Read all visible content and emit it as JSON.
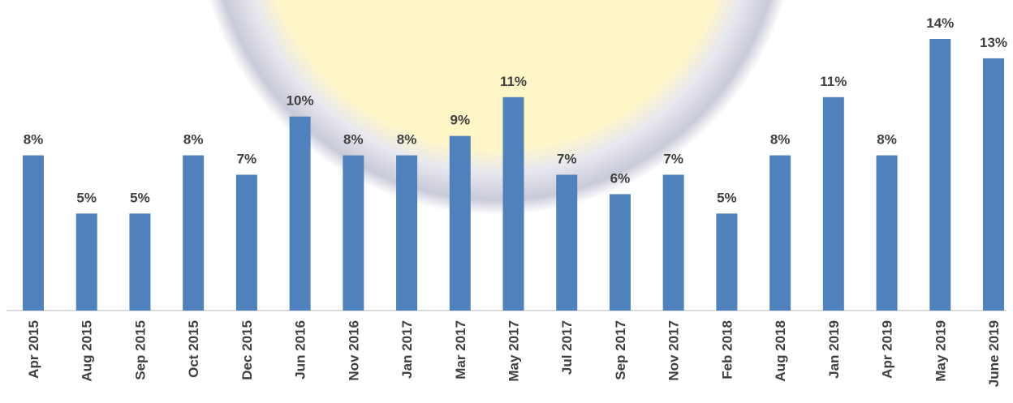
{
  "chart_data": {
    "type": "bar",
    "categories": [
      "Apr 2015",
      "Aug 2015",
      "Sep 2015",
      "Oct 2015",
      "Dec 2015",
      "Jun 2016",
      "Nov 2016",
      "Jan 2017",
      "Mar 2017",
      "May 2017",
      "Jul 2017",
      "Sep 2017",
      "Nov 2017",
      "Feb 2018",
      "Aug 2018",
      "Jan 2019",
      "Apr 2019",
      "May 2019",
      "June 2019"
    ],
    "values": [
      8,
      5,
      5,
      8,
      7,
      10,
      8,
      8,
      9,
      11,
      7,
      6,
      7,
      5,
      8,
      11,
      8,
      14,
      13
    ],
    "value_labels": [
      "8%",
      "5%",
      "5%",
      "8%",
      "7%",
      "10%",
      "8%",
      "8%",
      "9%",
      "11%",
      "7%",
      "6%",
      "7%",
      "5%",
      "8%",
      "11%",
      "8%",
      "14%",
      "13%"
    ],
    "color": "#4f81bd"
  }
}
